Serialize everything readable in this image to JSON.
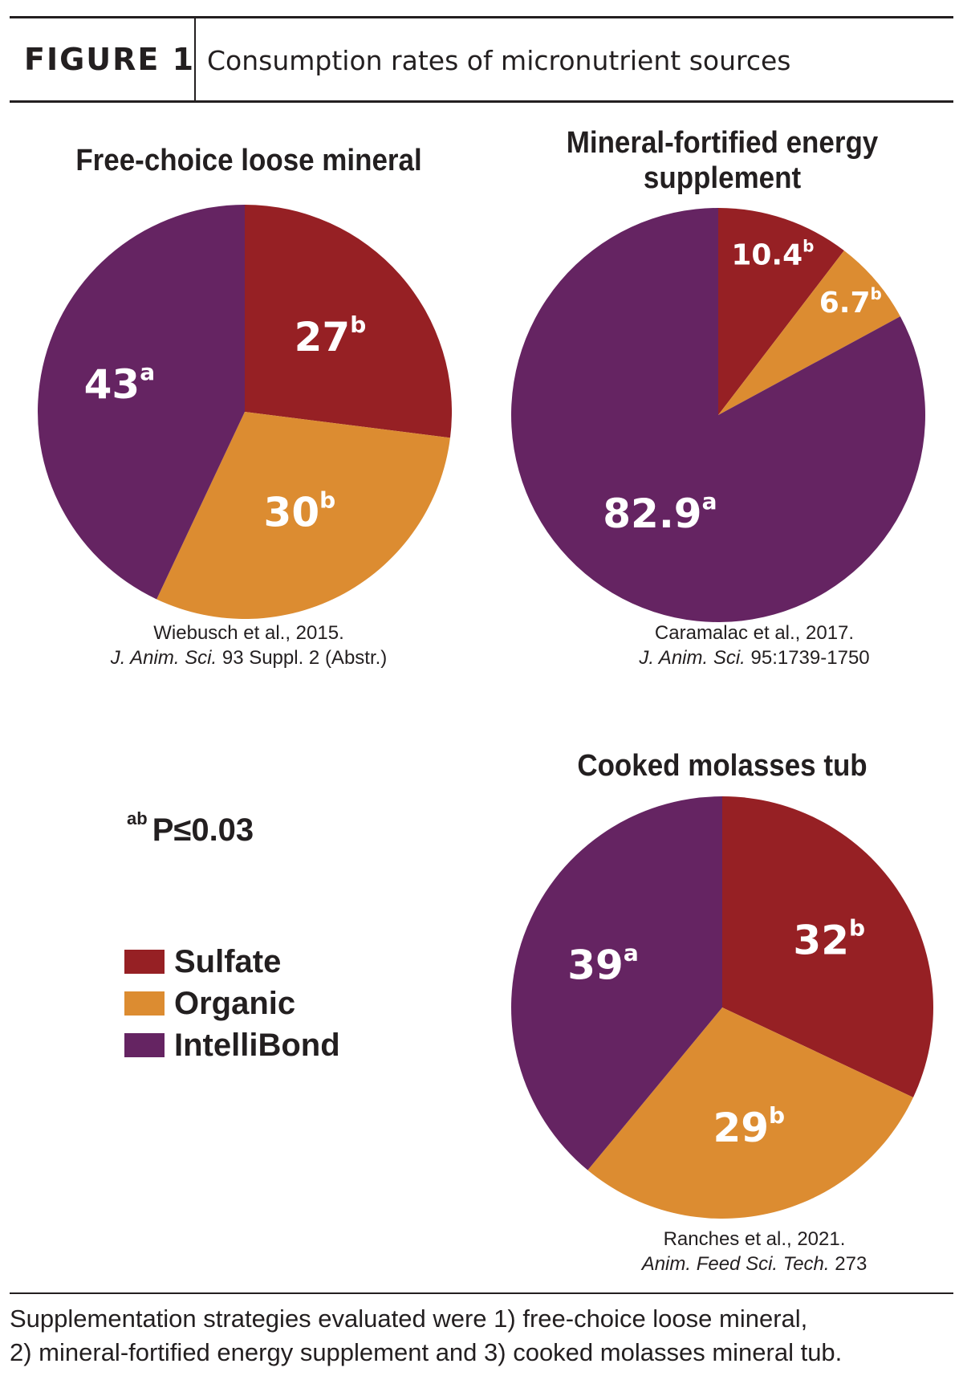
{
  "header": {
    "figure_label": "FIGURE 1",
    "title": "Consumption rates of micronutrient sources"
  },
  "colors": {
    "sulfate": "#962024",
    "organic": "#dc8c31",
    "intellibond": "#652462"
  },
  "significance_note": {
    "superscript": "ab",
    "text": "P≤0.03"
  },
  "legend": [
    {
      "label": "Sulfate",
      "color": "#962024"
    },
    {
      "label": "Organic",
      "color": "#dc8c31"
    },
    {
      "label": "IntelliBond",
      "color": "#652462"
    }
  ],
  "chart_data": [
    {
      "type": "pie",
      "title": "Free-choice loose mineral",
      "categories": [
        "Sulfate",
        "Organic",
        "IntelliBond"
      ],
      "values": [
        27,
        30,
        43
      ],
      "superscripts": [
        "b",
        "b",
        "a"
      ],
      "labels": [
        "27",
        "30",
        "43"
      ],
      "source": {
        "authors": "Wiebusch et al., 2015.",
        "journal": "J. Anim. Sci.",
        "ref": " 93 Suppl. 2 (Abstr.)"
      }
    },
    {
      "type": "pie",
      "title": "Mineral-fortified energy supplement",
      "categories": [
        "Sulfate",
        "Organic",
        "IntelliBond"
      ],
      "values": [
        10.4,
        6.7,
        82.9
      ],
      "superscripts": [
        "b",
        "b",
        "a"
      ],
      "labels": [
        "10.4",
        "6.7",
        "82.9"
      ],
      "source": {
        "authors": "Caramalac et al., 2017.",
        "journal": "J. Anim. Sci.",
        "ref": " 95:1739-1750"
      }
    },
    {
      "type": "pie",
      "title": "Cooked molasses tub",
      "categories": [
        "Sulfate",
        "Organic",
        "IntelliBond"
      ],
      "values": [
        32,
        29,
        39
      ],
      "superscripts": [
        "b",
        "b",
        "a"
      ],
      "labels": [
        "32",
        "29",
        "39"
      ],
      "source": {
        "authors": "Ranches et al., 2021.",
        "journal": "Anim. Feed Sci. Tech.",
        "ref": " 273"
      }
    }
  ],
  "footer": {
    "line1": "Supplementation strategies evaluated were 1) free-choice loose mineral,",
    "line2": "2) mineral-fortified energy supplement and 3) cooked molasses mineral tub."
  }
}
